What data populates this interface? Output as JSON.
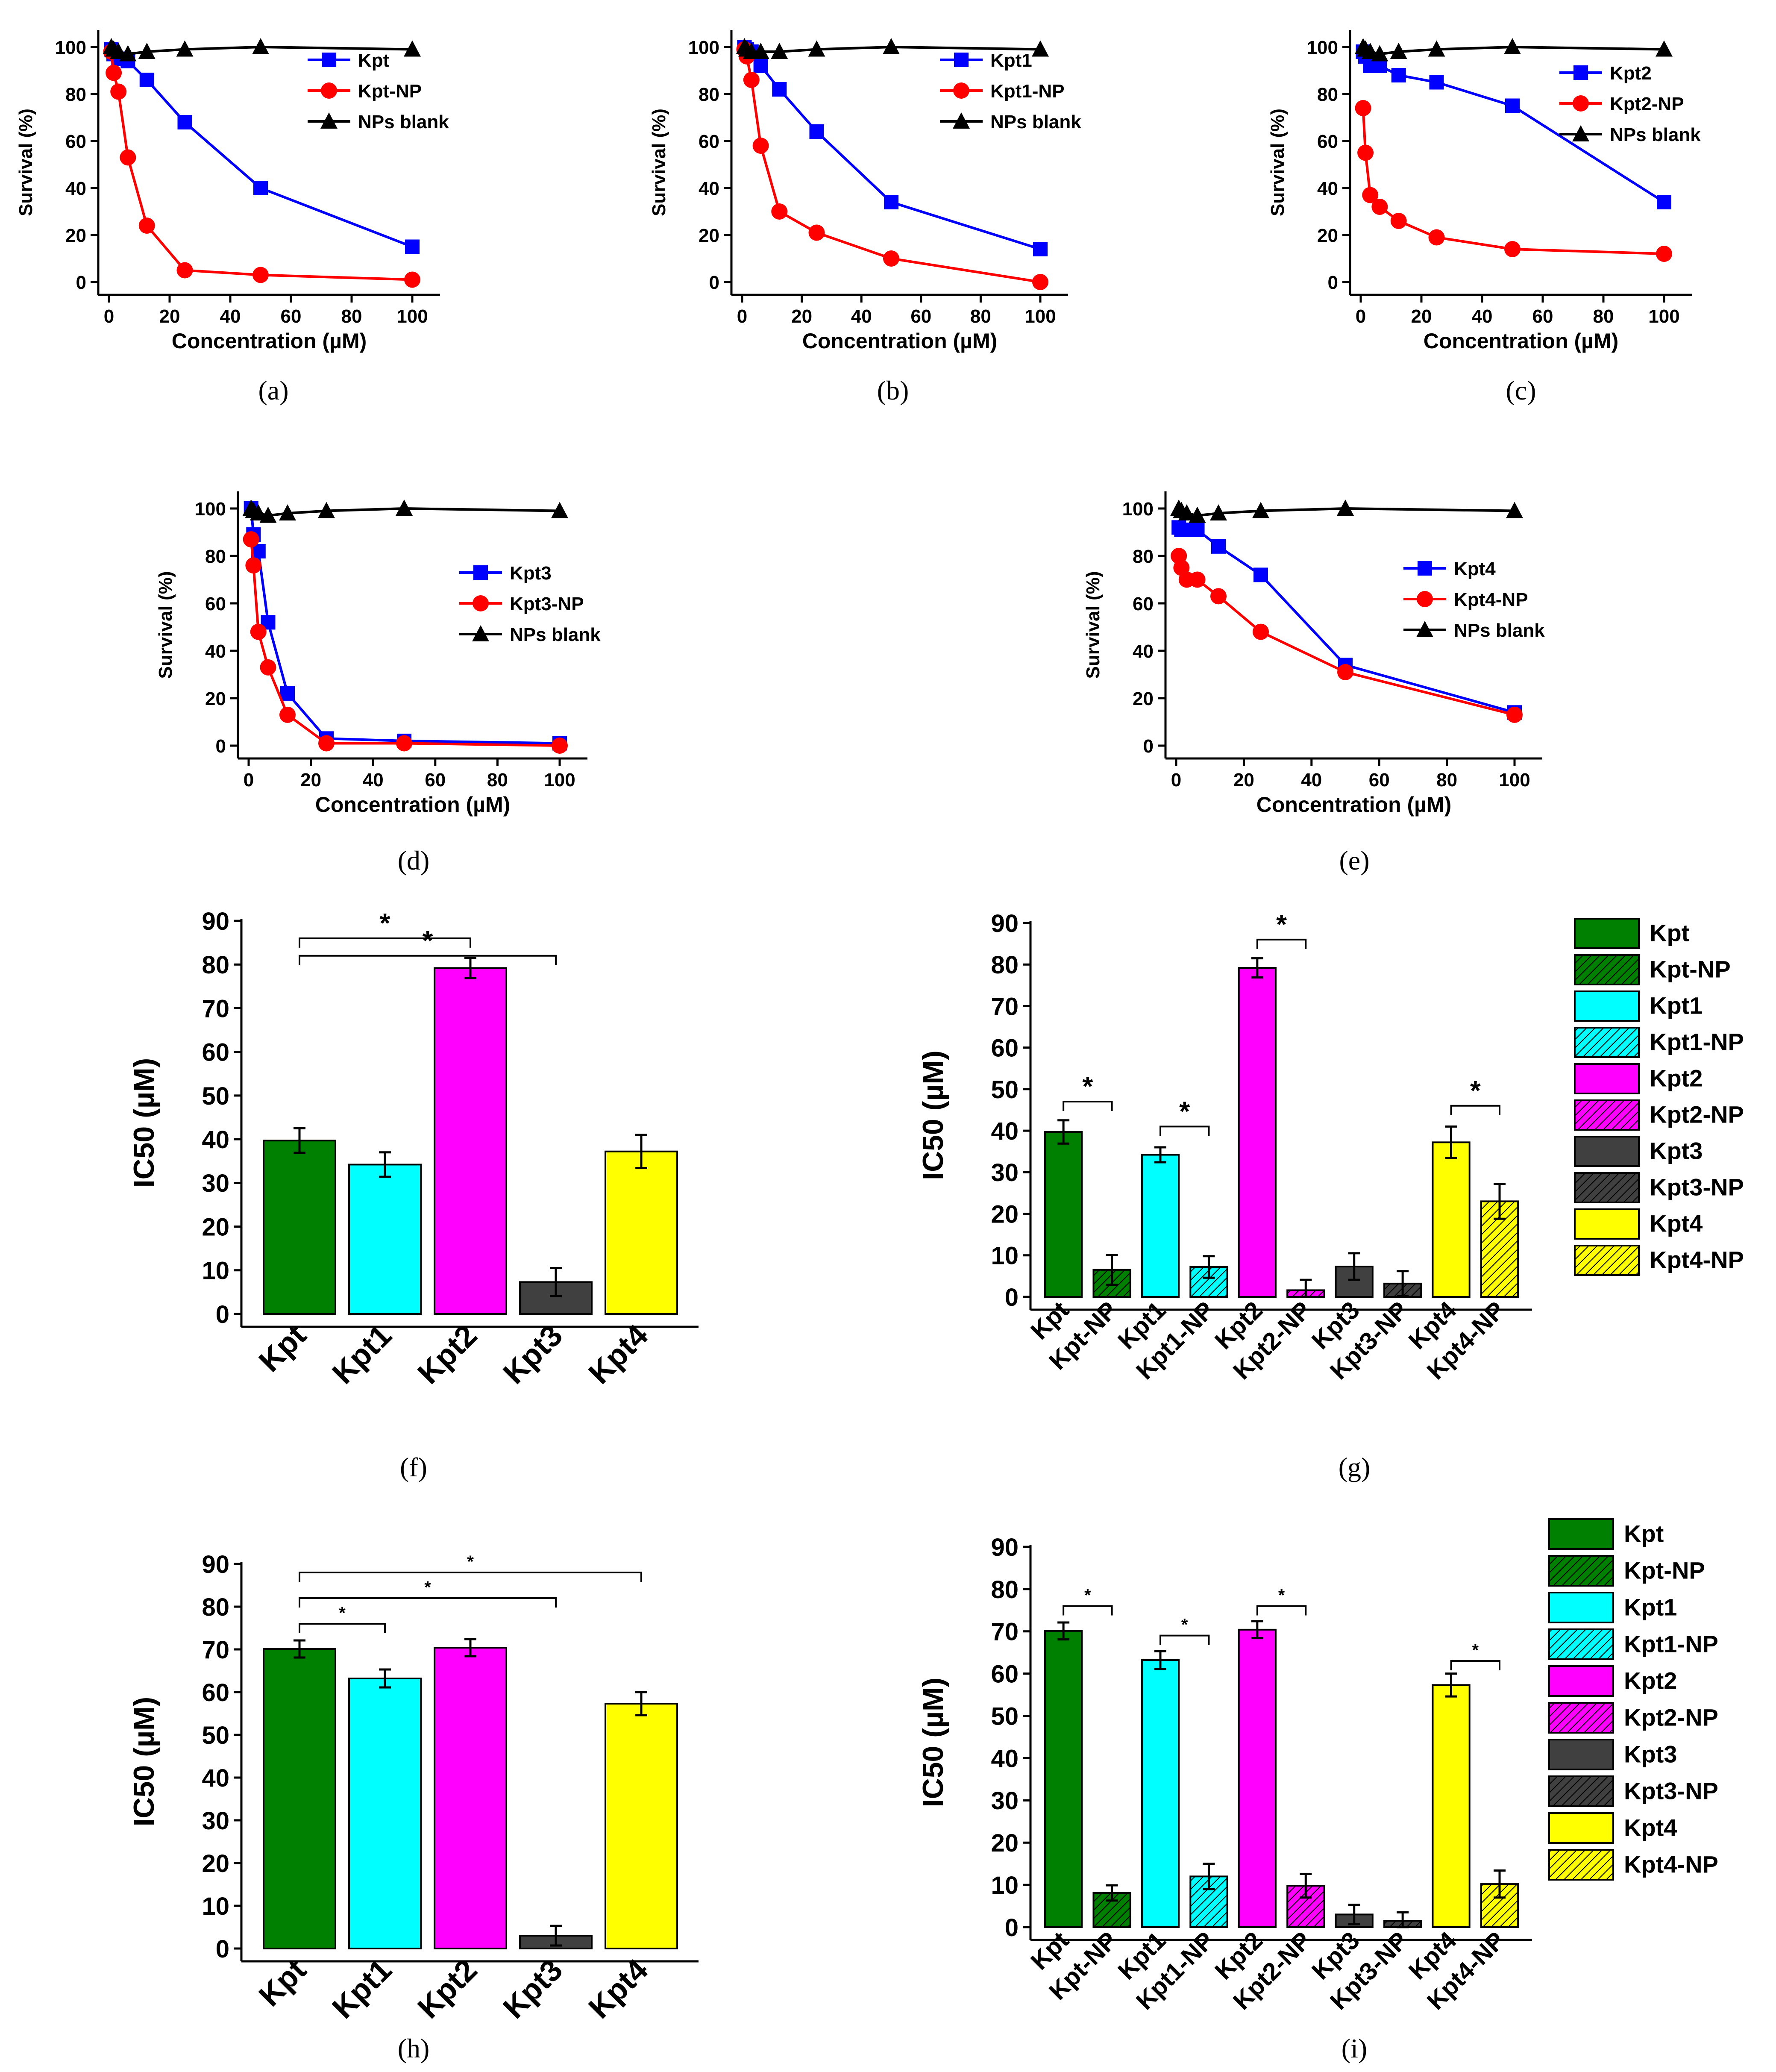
{
  "figure": {
    "conc": [
      0.78,
      1.56,
      3.13,
      6.25,
      12.5,
      25,
      50,
      100
    ],
    "colors": {
      "Kpt": "#008000",
      "Kpt1": "#00FFFF",
      "Kpt2": "#FF00FF",
      "Kpt3": "#404040",
      "Kpt4": "#FFFF00",
      "blue": "#0000FF",
      "red": "#FF0000",
      "black": "#000000"
    }
  },
  "chart_data": [
    {
      "id": "a",
      "caption": "(a)",
      "type": "line",
      "xlabel": "Concentration (µM)",
      "ylabel": "Survival (%)",
      "xlim": [
        0,
        100
      ],
      "ylim": [
        0,
        100
      ],
      "xticks": [
        0,
        20,
        40,
        60,
        80,
        100
      ],
      "yticks": [
        0,
        20,
        40,
        60,
        80,
        100
      ],
      "x": [
        0.78,
        1.56,
        3.13,
        6.25,
        12.5,
        25,
        50,
        100
      ],
      "series": [
        {
          "name": "Kpt",
          "color": "#0000FF",
          "marker": "square",
          "values": [
            99,
            97,
            95,
            94,
            86,
            68,
            40,
            15
          ]
        },
        {
          "name": "Kpt-NP",
          "color": "#FF0000",
          "marker": "circle",
          "values": [
            98,
            89,
            81,
            53,
            24,
            5,
            3,
            1
          ]
        },
        {
          "name": "NPs blank",
          "color": "#000000",
          "marker": "triangle",
          "values": [
            100,
            99,
            98,
            97,
            98,
            99,
            100,
            99
          ]
        }
      ]
    },
    {
      "id": "b",
      "caption": "(b)",
      "type": "line",
      "xlabel": "Concentration (µM)",
      "ylabel": "Survival (%)",
      "xlim": [
        0,
        100
      ],
      "ylim": [
        0,
        100
      ],
      "xticks": [
        0,
        20,
        40,
        60,
        80,
        100
      ],
      "yticks": [
        0,
        20,
        40,
        60,
        80,
        100
      ],
      "x": [
        0.78,
        1.56,
        3.13,
        6.25,
        12.5,
        25,
        50,
        100
      ],
      "series": [
        {
          "name": "Kpt1",
          "color": "#0000FF",
          "marker": "square",
          "values": [
            100,
            99,
            98,
            92,
            82,
            64,
            34,
            14
          ]
        },
        {
          "name": "Kpt1-NP",
          "color": "#FF0000",
          "marker": "circle",
          "values": [
            99,
            96,
            86,
            58,
            30,
            21,
            10,
            0
          ]
        },
        {
          "name": "NPs blank",
          "color": "#000000",
          "marker": "triangle",
          "values": [
            100,
            99,
            98,
            98,
            98,
            99,
            100,
            99
          ]
        }
      ]
    },
    {
      "id": "c",
      "caption": "(c)",
      "type": "line",
      "xlabel": "Concentration (µM)",
      "ylabel": "Survival (%)",
      "xlim": [
        0,
        100
      ],
      "ylim": [
        0,
        100
      ],
      "xticks": [
        0,
        20,
        40,
        60,
        80,
        100
      ],
      "yticks": [
        0,
        20,
        40,
        60,
        80,
        100
      ],
      "x": [
        0.78,
        1.56,
        3.13,
        6.25,
        12.5,
        25,
        50,
        100
      ],
      "series": [
        {
          "name": "Kpt2",
          "color": "#0000FF",
          "marker": "square",
          "values": [
            98,
            96,
            92,
            92,
            88,
            85,
            75,
            34
          ]
        },
        {
          "name": "Kpt2-NP",
          "color": "#FF0000",
          "marker": "circle",
          "values": [
            74,
            55,
            37,
            32,
            26,
            19,
            14,
            12
          ]
        },
        {
          "name": "NPs blank",
          "color": "#000000",
          "marker": "triangle",
          "values": [
            100,
            99,
            98,
            97,
            98,
            99,
            100,
            99
          ]
        }
      ]
    },
    {
      "id": "d",
      "caption": "(d)",
      "type": "line",
      "xlabel": "Concentration (µM)",
      "ylabel": "Survival (%)",
      "xlim": [
        0,
        100
      ],
      "ylim": [
        0,
        100
      ],
      "xticks": [
        0,
        20,
        40,
        60,
        80,
        100
      ],
      "yticks": [
        0,
        20,
        40,
        60,
        80,
        100
      ],
      "x": [
        0.78,
        1.56,
        3.13,
        6.25,
        12.5,
        25,
        50,
        100
      ],
      "series": [
        {
          "name": "Kpt3",
          "color": "#0000FF",
          "marker": "square",
          "values": [
            100,
            89,
            82,
            52,
            22,
            3,
            2,
            1
          ]
        },
        {
          "name": "Kpt3-NP",
          "color": "#FF0000",
          "marker": "circle",
          "values": [
            87,
            76,
            48,
            33,
            13,
            1,
            1,
            0
          ]
        },
        {
          "name": "NPs blank",
          "color": "#000000",
          "marker": "triangle",
          "values": [
            100,
            99,
            98,
            97,
            98,
            99,
            100,
            99
          ]
        }
      ]
    },
    {
      "id": "e",
      "caption": "(e)",
      "type": "line",
      "xlabel": "Concentration (µM)",
      "ylabel": "Survival (%)",
      "xlim": [
        0,
        100
      ],
      "ylim": [
        0,
        100
      ],
      "xticks": [
        0,
        20,
        40,
        60,
        80,
        100
      ],
      "yticks": [
        0,
        20,
        40,
        60,
        80,
        100
      ],
      "x": [
        0.78,
        1.56,
        3.13,
        6.25,
        12.5,
        25,
        50,
        100
      ],
      "series": [
        {
          "name": "Kpt4",
          "color": "#0000FF",
          "marker": "square",
          "values": [
            92,
            91,
            91,
            91,
            84,
            72,
            34,
            14
          ]
        },
        {
          "name": "Kpt4-NP",
          "color": "#FF0000",
          "marker": "circle",
          "values": [
            80,
            75,
            70,
            70,
            63,
            48,
            31,
            13
          ]
        },
        {
          "name": "NPs blank",
          "color": "#000000",
          "marker": "triangle",
          "values": [
            100,
            99,
            98,
            97,
            98,
            99,
            100,
            99
          ]
        }
      ]
    },
    {
      "id": "f",
      "caption": "(f)",
      "type": "bar",
      "ylabel": "IC50 (µM)",
      "ylim": [
        0,
        90
      ],
      "yticks": [
        0,
        10,
        20,
        30,
        40,
        50,
        60,
        70,
        80,
        90
      ],
      "categories": [
        "Kpt",
        "Kpt1",
        "Kpt2",
        "Kpt3",
        "Kpt4"
      ],
      "values": [
        39.7,
        34.2,
        79.2,
        7.3,
        37.2
      ],
      "errors": [
        2.8,
        2.8,
        2.3,
        3.2,
        3.8
      ],
      "colors": [
        "#008000",
        "#00FFFF",
        "#FF00FF",
        "#404040",
        "#FFFF00"
      ],
      "hatched": [
        false,
        false,
        false,
        false,
        false
      ],
      "significance": [
        {
          "from": 0,
          "to": 2,
          "label": "*",
          "y": 86
        },
        {
          "from": 0,
          "to": 3,
          "label": "*",
          "y": 82
        }
      ]
    },
    {
      "id": "g",
      "caption": "(g)",
      "type": "bar",
      "ylabel": "IC50 (µM)",
      "ylim": [
        0,
        90
      ],
      "yticks": [
        0,
        10,
        20,
        30,
        40,
        50,
        60,
        70,
        80,
        90
      ],
      "categories": [
        "Kpt",
        "Kpt-NP",
        "Kpt1",
        "Kpt1-NP",
        "Kpt2",
        "Kpt2-NP",
        "Kpt3",
        "Kpt3-NP",
        "Kpt4",
        "Kpt4-NP"
      ],
      "values": [
        39.7,
        6.5,
        34.2,
        7.2,
        79.2,
        1.6,
        7.3,
        3.2,
        37.2,
        23.0
      ],
      "errors": [
        2.8,
        3.6,
        1.8,
        2.6,
        2.3,
        2.5,
        3.2,
        3.0,
        3.8,
        4.2
      ],
      "colors": [
        "#008000",
        "#008000",
        "#00FFFF",
        "#00FFFF",
        "#FF00FF",
        "#FF00FF",
        "#404040",
        "#404040",
        "#FFFF00",
        "#FFFF00"
      ],
      "hatched": [
        false,
        true,
        false,
        true,
        false,
        true,
        false,
        true,
        false,
        true
      ],
      "legend": [
        "Kpt",
        "Kpt-NP",
        "Kpt1",
        "Kpt1-NP",
        "Kpt2",
        "Kpt2-NP",
        "Kpt3",
        "Kpt3-NP",
        "Kpt4",
        "Kpt4-NP"
      ],
      "significance": [
        {
          "from": 0,
          "to": 1,
          "label": "*",
          "y": 47
        },
        {
          "from": 2,
          "to": 3,
          "label": "*",
          "y": 41
        },
        {
          "from": 4,
          "to": 5,
          "label": "*",
          "y": 86
        },
        {
          "from": 8,
          "to": 9,
          "label": "*",
          "y": 46
        }
      ]
    },
    {
      "id": "h",
      "caption": "(h)",
      "type": "bar",
      "ylabel": "IC50 (µM)",
      "ylim": [
        0,
        90
      ],
      "yticks": [
        0,
        10,
        20,
        30,
        40,
        50,
        60,
        70,
        80,
        90
      ],
      "categories": [
        "Kpt",
        "Kpt1",
        "Kpt2",
        "Kpt3",
        "Kpt4"
      ],
      "values": [
        70.1,
        63.2,
        70.4,
        3.0,
        57.3
      ],
      "errors": [
        2.0,
        2.1,
        2.0,
        2.3,
        2.7
      ],
      "colors": [
        "#008000",
        "#00FFFF",
        "#FF00FF",
        "#404040",
        "#FFFF00"
      ],
      "hatched": [
        false,
        false,
        false,
        false,
        false
      ],
      "significance": [
        {
          "from": 0,
          "to": 4,
          "label": "*",
          "y": 88
        },
        {
          "from": 0,
          "to": 3,
          "label": "*",
          "y": 82
        },
        {
          "from": 0,
          "to": 1,
          "label": "*",
          "y": 76
        }
      ]
    },
    {
      "id": "i",
      "caption": "(i)",
      "type": "bar",
      "ylabel": "IC50 (µM)",
      "ylim": [
        0,
        90
      ],
      "yticks": [
        0,
        10,
        20,
        30,
        40,
        50,
        60,
        70,
        80,
        90
      ],
      "categories": [
        "Kpt",
        "Kpt-NP",
        "Kpt1",
        "Kpt1-NP",
        "Kpt2",
        "Kpt2-NP",
        "Kpt3",
        "Kpt3-NP",
        "Kpt4",
        "Kpt4-NP"
      ],
      "values": [
        70.1,
        8.1,
        63.2,
        12.0,
        70.4,
        9.8,
        3.0,
        1.5,
        57.3,
        10.2
      ],
      "errors": [
        2.0,
        1.8,
        2.1,
        3.0,
        2.0,
        2.8,
        2.3,
        2.0,
        2.7,
        3.2
      ],
      "colors": [
        "#008000",
        "#008000",
        "#00FFFF",
        "#00FFFF",
        "#FF00FF",
        "#FF00FF",
        "#404040",
        "#404040",
        "#FFFF00",
        "#FFFF00"
      ],
      "hatched": [
        false,
        true,
        false,
        true,
        false,
        true,
        false,
        true,
        false,
        true
      ],
      "legend": [
        "Kpt",
        "Kpt-NP",
        "Kpt1",
        "Kpt1-NP",
        "Kpt2",
        "Kpt2-NP",
        "Kpt3",
        "Kpt3-NP",
        "Kpt4",
        "Kpt4-NP"
      ],
      "significance": [
        {
          "from": 0,
          "to": 1,
          "label": "*",
          "y": 76
        },
        {
          "from": 2,
          "to": 3,
          "label": "*",
          "y": 69
        },
        {
          "from": 4,
          "to": 5,
          "label": "*",
          "y": 76
        },
        {
          "from": 8,
          "to": 9,
          "label": "*",
          "y": 63
        }
      ]
    }
  ]
}
